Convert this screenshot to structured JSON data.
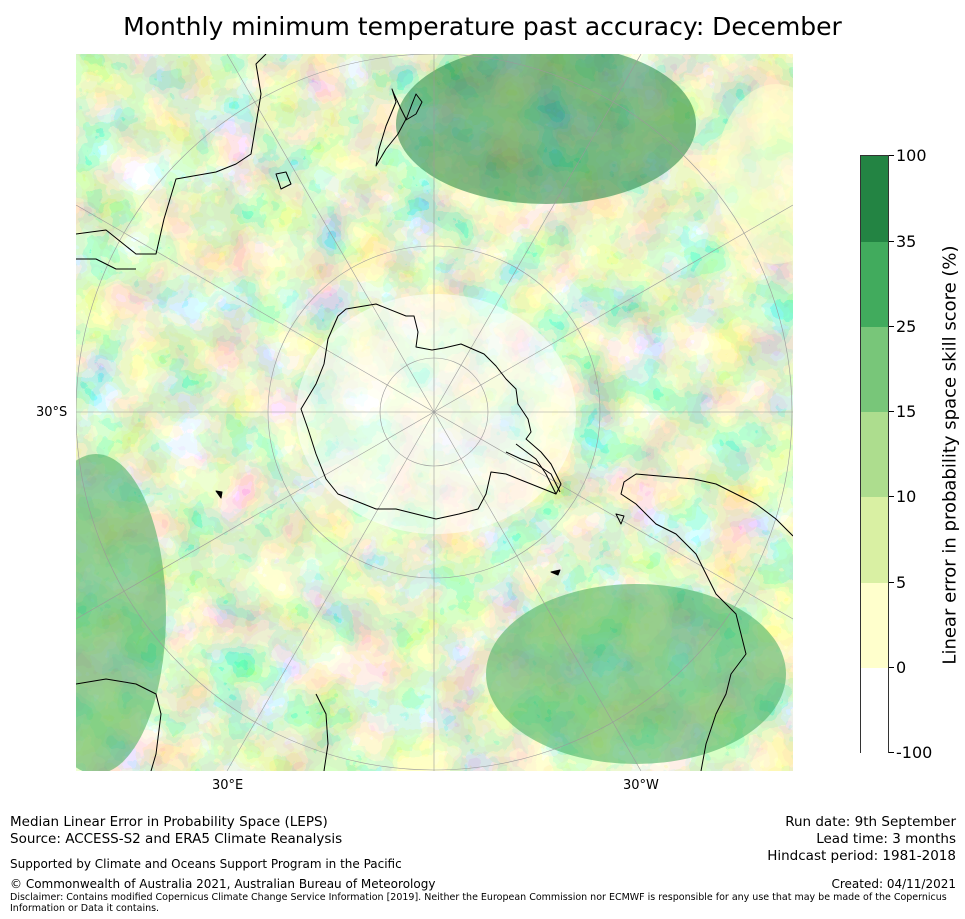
{
  "title": "Monthly minimum temperature past accuracy: December",
  "map": {
    "projection": "south-polar-stereographic",
    "lat_label": "30°S",
    "lon_labels": [
      "30°E",
      "30°W"
    ],
    "colors": {
      "band_neg": "#ffffff",
      "band_0_5": "#ffffcc",
      "band_5_10": "#d9f0a3",
      "band_10_15": "#addd8e",
      "band_15_25": "#78c679",
      "band_25_35": "#41ab5d",
      "band_35_100": "#238443",
      "coast": "#000000",
      "grid": "#9a9a9a"
    }
  },
  "colorbar": {
    "label": "Linear error in probability space skill score (%)",
    "ticks": [
      "100",
      "35",
      "25",
      "15",
      "10",
      "5",
      "0",
      "-100"
    ],
    "bands": [
      {
        "from": "35",
        "to": "100",
        "color": "#238443"
      },
      {
        "from": "25",
        "to": "35",
        "color": "#41ab5d"
      },
      {
        "from": "15",
        "to": "25",
        "color": "#78c679"
      },
      {
        "from": "10",
        "to": "15",
        "color": "#addd8e"
      },
      {
        "from": "5",
        "to": "10",
        "color": "#d9f0a3"
      },
      {
        "from": "0",
        "to": "5",
        "color": "#ffffcc"
      },
      {
        "from": "-100",
        "to": "0",
        "color": "#ffffff"
      }
    ]
  },
  "footer": {
    "method": "Median Linear Error in Probability Space (LEPS)",
    "source": "Source: ACCESS-S2 and ERA5 Climate Reanalysis",
    "support": "Supported by Climate and Oceans Support Program in the Pacific",
    "copyright": "© Commonwealth of Australia 2021, Australian Bureau of Meteorology",
    "disclaimer_line1": "Disclaimer: Contains modified Copernicus Climate Change Service Information [2019]. Neither the European Commission nor ECMWF is responsible for any use that may be made of the Copernicus",
    "disclaimer_line2": "Information or Data it contains.",
    "run_date": "Run date: 9th September",
    "lead_time": "Lead time: 3 months",
    "hindcast": "Hindcast period: 1981-2018",
    "created": "Created: 04/11/2021"
  }
}
